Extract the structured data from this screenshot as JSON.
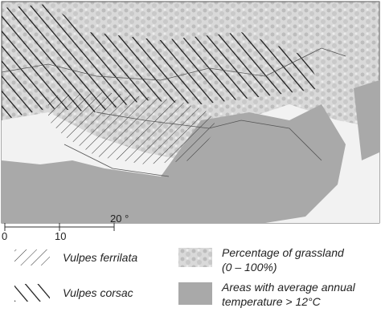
{
  "scale_bar": {
    "labels": [
      "0",
      "10",
      "20 °"
    ]
  },
  "legend": {
    "items": [
      {
        "label": [
          "Vulpes ferrilata"
        ]
      },
      {
        "label": [
          "Vulpes corsac"
        ]
      },
      {
        "label": [
          "Percentage of grassland",
          "(0 – 100%)"
        ]
      },
      {
        "label": [
          "Areas with average annual",
          "temperature > 12°C"
        ]
      }
    ]
  }
}
